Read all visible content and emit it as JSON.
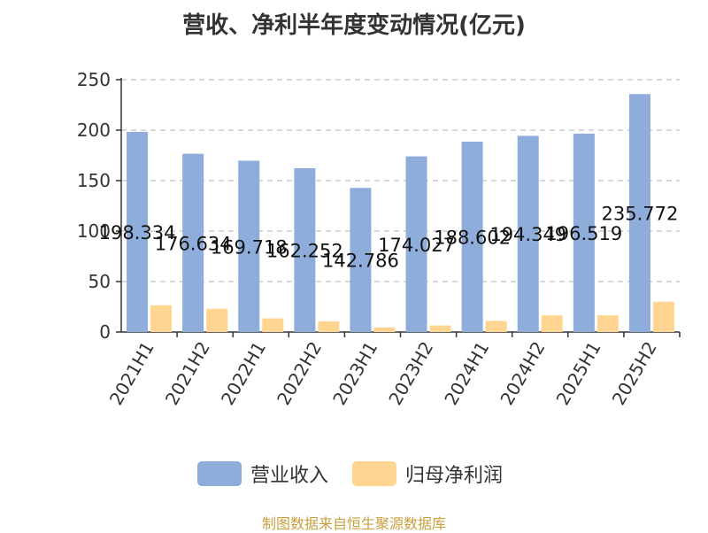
{
  "title": "营收、净利半年度变动情况(亿元)",
  "footer": "制图数据来自恒生聚源数据库",
  "colors": {
    "revenue": "#8eaddb",
    "net_profit": "#ffd591",
    "grid": "#cccccc",
    "axis": "#333333",
    "text": "#333333"
  },
  "chart_data": {
    "type": "bar",
    "categories": [
      "2021H1",
      "2021H2",
      "2022H1",
      "2022H2",
      "2023H1",
      "2023H2",
      "2024H1",
      "2024H2",
      "2025H1",
      "2025H2"
    ],
    "series": [
      {
        "name": "营业收入",
        "values": [
          198.334,
          176.634,
          169.718,
          162.252,
          142.786,
          174.027,
          188.602,
          194.349,
          196.519,
          235.772
        ],
        "labels": [
          "198.334",
          "176.634",
          "169.718",
          "162.252",
          "142.786",
          "174.027",
          "188.602",
          "194.349",
          "196.519",
          "235.772"
        ]
      },
      {
        "name": "归母净利润",
        "values": [
          26.5,
          23.0,
          13.5,
          10.5,
          4.5,
          6.5,
          11.0,
          16.5,
          16.5,
          30.0
        ]
      }
    ],
    "yticks": [
      "0",
      "50",
      "100",
      "150",
      "200",
      "250"
    ],
    "ylim": [
      0,
      250
    ],
    "grid": true,
    "legend": "bottom"
  }
}
